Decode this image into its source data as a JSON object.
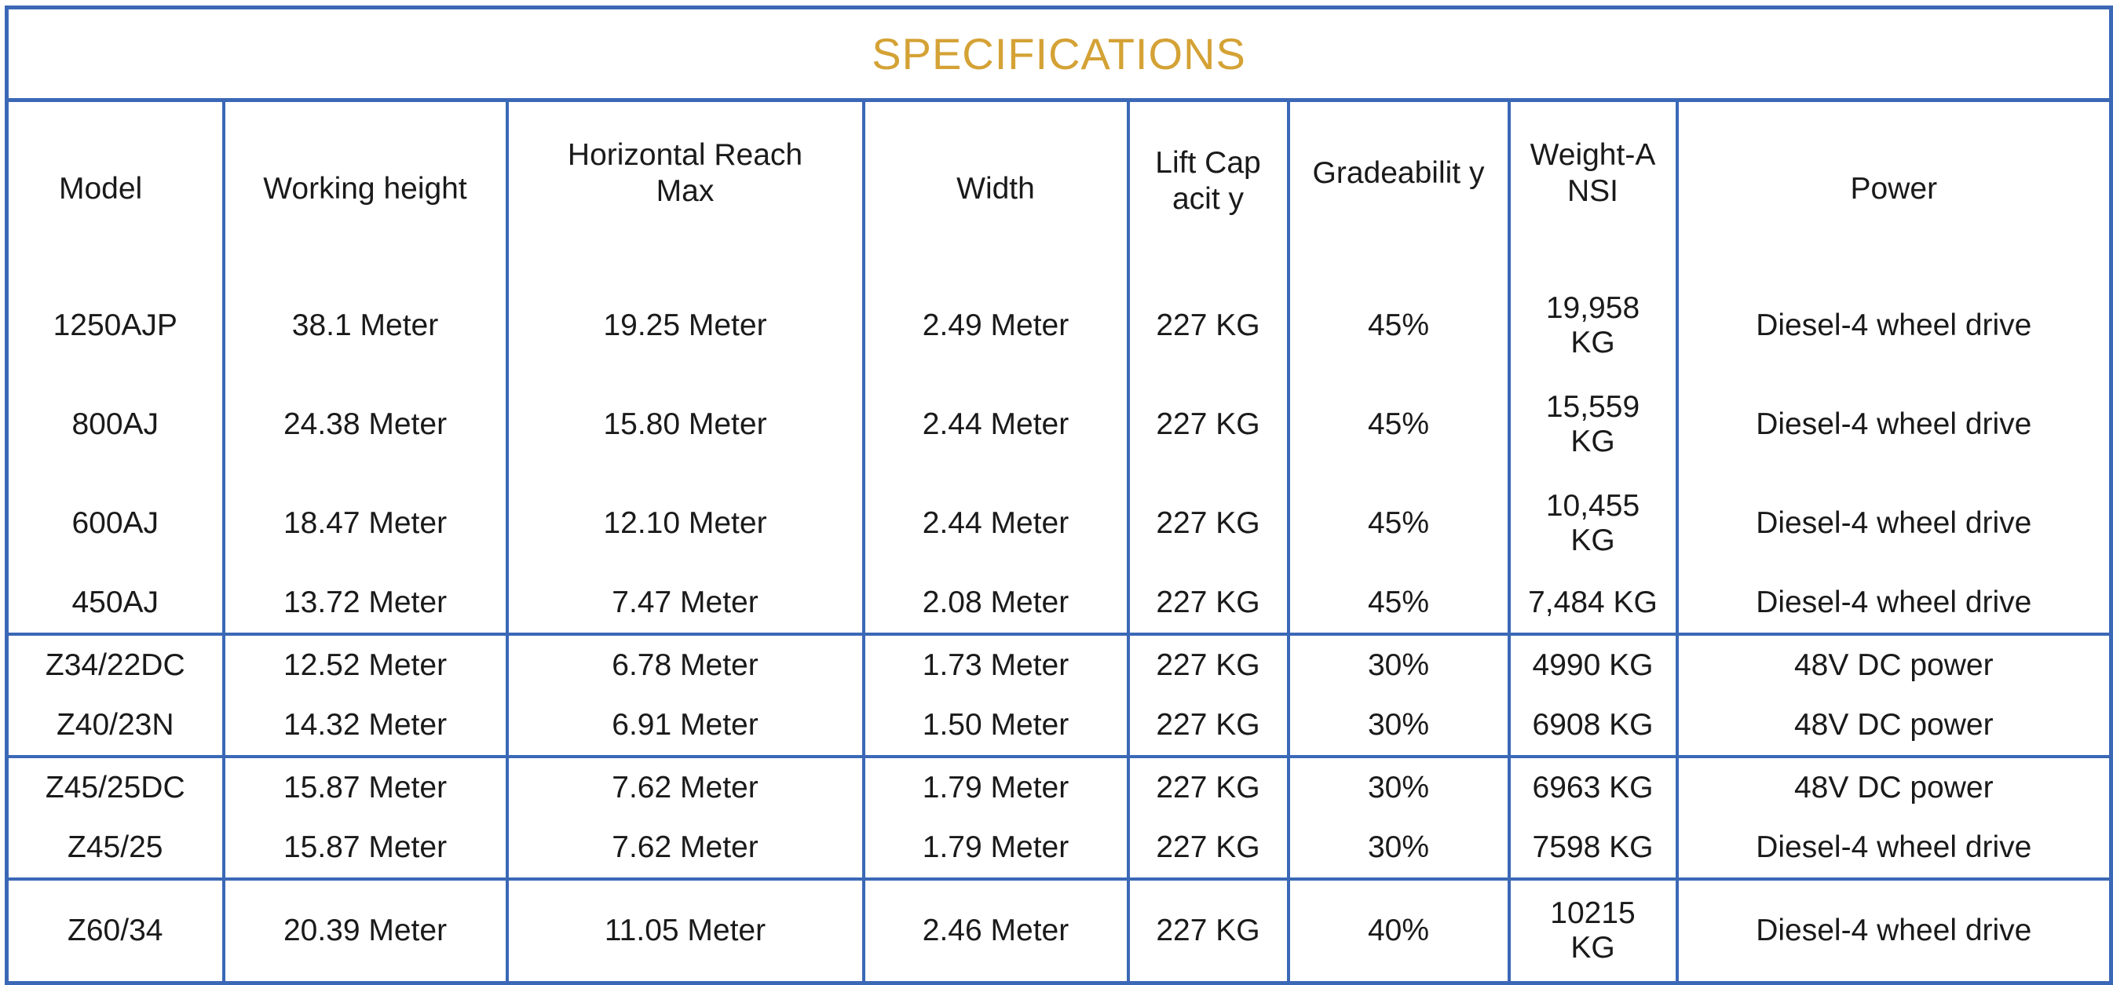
{
  "title": "SPECIFICATIONS",
  "columns": [
    "Model",
    "Working height",
    "Horizontal Reach Max",
    "Width",
    "Lift Capacity",
    "Gradeability",
    "Weight-ANSI",
    "Power"
  ],
  "column_display": [
    "Model",
    "Working height",
    "Horizontal Reach Max",
    "Width",
    "Lift Capacit y",
    "Gradeabilit y",
    "Weight-ANSI",
    "Power"
  ],
  "rows": [
    {
      "model": "1250AJP",
      "height": "38.1 Meter",
      "reach": "19.25 Meter",
      "width": "2.49 Meter",
      "lift": "227 KG",
      "grade": "45%",
      "weight": "19,958 KG",
      "power": "Diesel-4 wheel drive"
    },
    {
      "model": "800AJ",
      "height": "24.38 Meter",
      "reach": "15.80 Meter",
      "width": "2.44 Meter",
      "lift": "227 KG",
      "grade": "45%",
      "weight": "15,559 KG",
      "power": "Diesel-4 wheel drive"
    },
    {
      "model": "600AJ",
      "height": "18.47 Meter",
      "reach": "12.10 Meter",
      "width": "2.44 Meter",
      "lift": "227 KG",
      "grade": "45%",
      "weight": "10,455 KG",
      "power": "Diesel-4 wheel drive"
    },
    {
      "model": "450AJ",
      "height": "13.72 Meter",
      "reach": "7.47 Meter",
      "width": "2.08 Meter",
      "lift": "227 KG",
      "grade": "45%",
      "weight": "7,484 KG",
      "power": "Diesel-4 wheel drive"
    },
    {
      "model": "Z34/22DC",
      "height": "12.52 Meter",
      "reach": "6.78 Meter",
      "width": "1.73 Meter",
      "lift": "227 KG",
      "grade": "30%",
      "weight": "4990 KG",
      "power": "48V DC power"
    },
    {
      "model": "Z40/23N",
      "height": "14.32 Meter",
      "reach": "6.91 Meter",
      "width": "1.50 Meter",
      "lift": "227 KG",
      "grade": "30%",
      "weight": "6908 KG",
      "power": "48V DC power"
    },
    {
      "model": "Z45/25DC",
      "height": "15.87 Meter",
      "reach": "7.62 Meter",
      "width": "1.79 Meter",
      "lift": "227 KG",
      "grade": "30%",
      "weight": "6963 KG",
      "power": "48V DC power"
    },
    {
      "model": "Z45/25",
      "height": "15.87 Meter",
      "reach": "7.62 Meter",
      "width": "1.79 Meter",
      "lift": "227 KG",
      "grade": "30%",
      "weight": "7598 KG",
      "power": "Diesel-4 wheel drive"
    },
    {
      "model": "Z60/34",
      "height": "20.39 Meter",
      "reach": "11.05 Meter",
      "width": "2.46 Meter",
      "lift": "227 KG",
      "grade": "40%",
      "weight": "10215 KG",
      "power": "Diesel-4 wheel drive"
    }
  ],
  "colors": {
    "title": "#d4a235",
    "border": "#3b68b6"
  }
}
